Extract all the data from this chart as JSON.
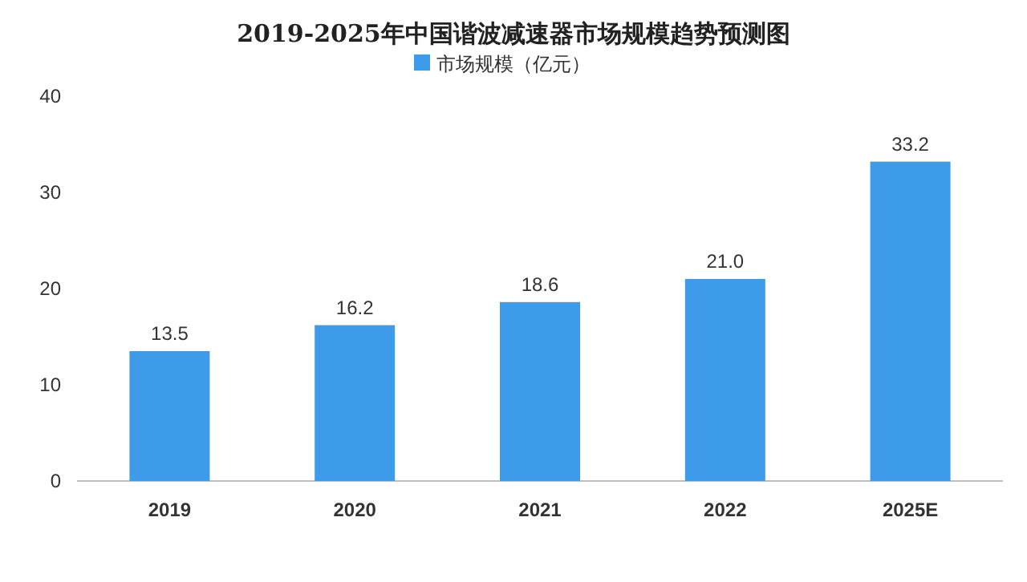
{
  "chart_data": {
    "type": "bar",
    "title": "2019-2025年中国谐波减速器市场规模趋势预测图",
    "categories": [
      "2019",
      "2020",
      "2021",
      "2022",
      "2025E"
    ],
    "series": [
      {
        "name": "市场规模（亿元）",
        "color": "#3d9be9",
        "values": [
          13.5,
          16.2,
          18.6,
          21.0,
          33.2
        ],
        "value_labels": [
          "13.5",
          "16.2",
          "18.6",
          "21.0",
          "33.2"
        ]
      }
    ],
    "ylim": [
      0,
      40
    ],
    "yticks": [
      0,
      10,
      20,
      30,
      40
    ],
    "legend": "top"
  }
}
